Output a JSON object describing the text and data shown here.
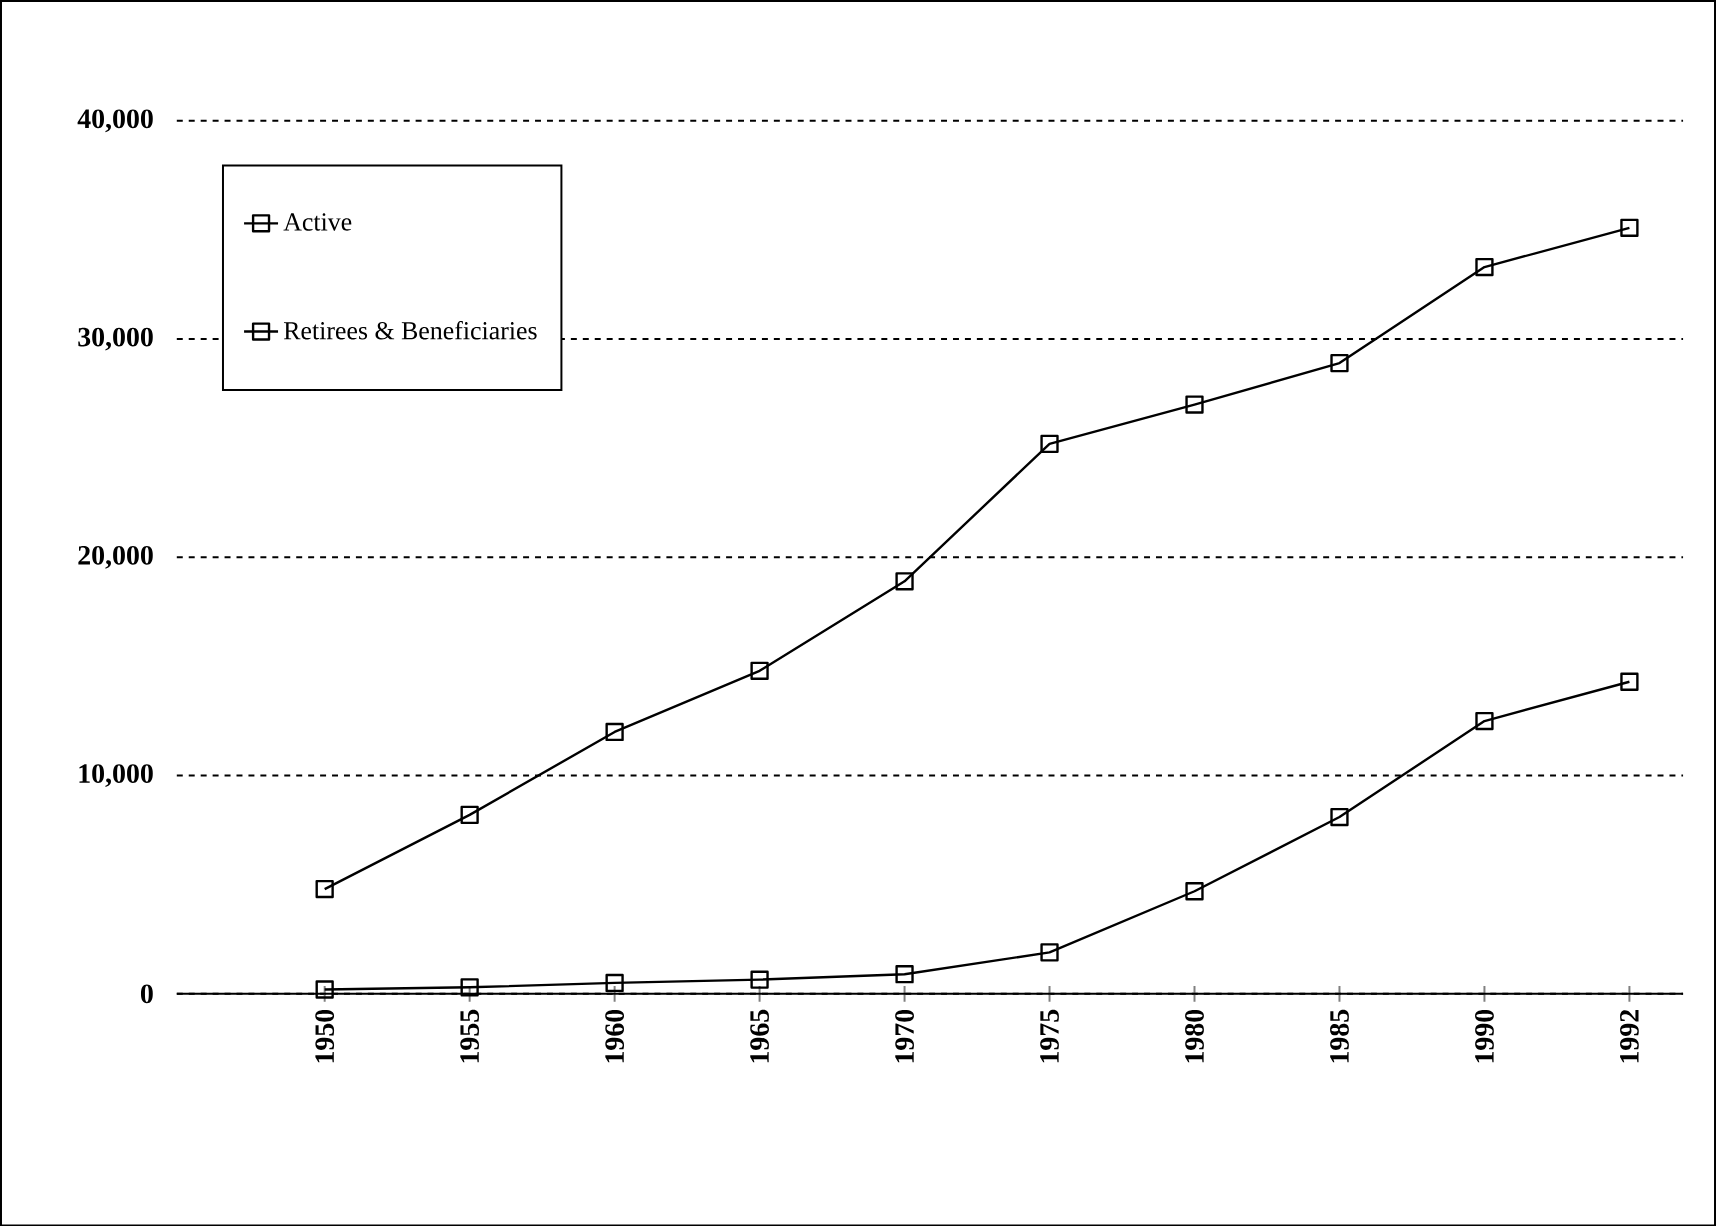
{
  "chart_data": {
    "type": "line",
    "categories": [
      "1950",
      "1955",
      "1960",
      "1965",
      "1970",
      "1975",
      "1980",
      "1985",
      "1990",
      "1992"
    ],
    "series": [
      {
        "name": "Active",
        "color": "#000000",
        "values": [
          4800,
          8200,
          12000,
          14800,
          18900,
          25200,
          27000,
          28900,
          33300,
          35100
        ]
      },
      {
        "name": "Retirees & Beneficiaries",
        "color": "#000000",
        "values": [
          200,
          300,
          500,
          650,
          900,
          1900,
          4700,
          8100,
          12500,
          14300
        ]
      }
    ],
    "ylim": [
      0,
      40000
    ],
    "yticks": [
      {
        "value": 0,
        "label": "0"
      },
      {
        "value": 10000,
        "label": "10,000"
      },
      {
        "value": 20000,
        "label": "20,000"
      },
      {
        "value": 30000,
        "label": "30,000"
      },
      {
        "value": 40000,
        "label": "40,000"
      }
    ],
    "grid": "y",
    "legend": "top left",
    "marker": "square",
    "line_style": "solid"
  }
}
